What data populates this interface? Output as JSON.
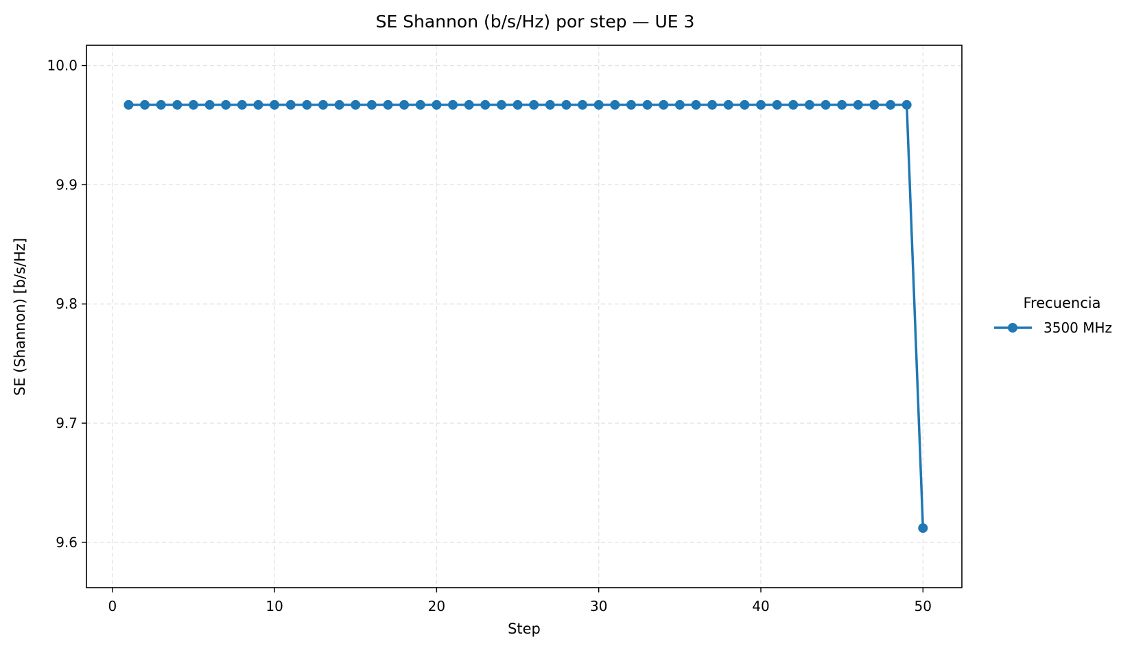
{
  "chart_data": {
    "type": "line",
    "title": "SE Shannon (b/s/Hz) por step — UE 3",
    "xlabel": "Step",
    "ylabel": "SE (Shannon) [b/s/Hz]",
    "xlim": [
      -1.6,
      52.4
    ],
    "ylim": [
      9.562,
      10.017
    ],
    "xticks": [
      0,
      10,
      20,
      30,
      40,
      50
    ],
    "xtick_labels": [
      "0",
      "10",
      "20",
      "30",
      "40",
      "50"
    ],
    "yticks": [
      9.6,
      9.7,
      9.8,
      9.9,
      10.0
    ],
    "ytick_labels": [
      "9.6",
      "9.7",
      "9.8",
      "9.9",
      "10.0"
    ],
    "grid": true,
    "legend": {
      "title": "Frecuencia",
      "placement": "outside-right"
    },
    "series": [
      {
        "name": "3500 MHz",
        "color": "#1f77b4",
        "marker": "circle",
        "x": [
          1,
          2,
          3,
          4,
          5,
          6,
          7,
          8,
          9,
          10,
          11,
          12,
          13,
          14,
          15,
          16,
          17,
          18,
          19,
          20,
          21,
          22,
          23,
          24,
          25,
          26,
          27,
          28,
          29,
          30,
          31,
          32,
          33,
          34,
          35,
          36,
          37,
          38,
          39,
          40,
          41,
          42,
          43,
          44,
          45,
          46,
          47,
          48,
          49,
          50
        ],
        "y": [
          9.967,
          9.967,
          9.967,
          9.967,
          9.967,
          9.967,
          9.967,
          9.967,
          9.967,
          9.967,
          9.967,
          9.967,
          9.967,
          9.967,
          9.967,
          9.967,
          9.967,
          9.967,
          9.967,
          9.967,
          9.967,
          9.967,
          9.967,
          9.967,
          9.967,
          9.967,
          9.967,
          9.967,
          9.967,
          9.967,
          9.967,
          9.967,
          9.967,
          9.967,
          9.967,
          9.967,
          9.967,
          9.967,
          9.967,
          9.967,
          9.967,
          9.967,
          9.967,
          9.967,
          9.967,
          9.967,
          9.967,
          9.967,
          9.967,
          9.612
        ]
      }
    ]
  }
}
